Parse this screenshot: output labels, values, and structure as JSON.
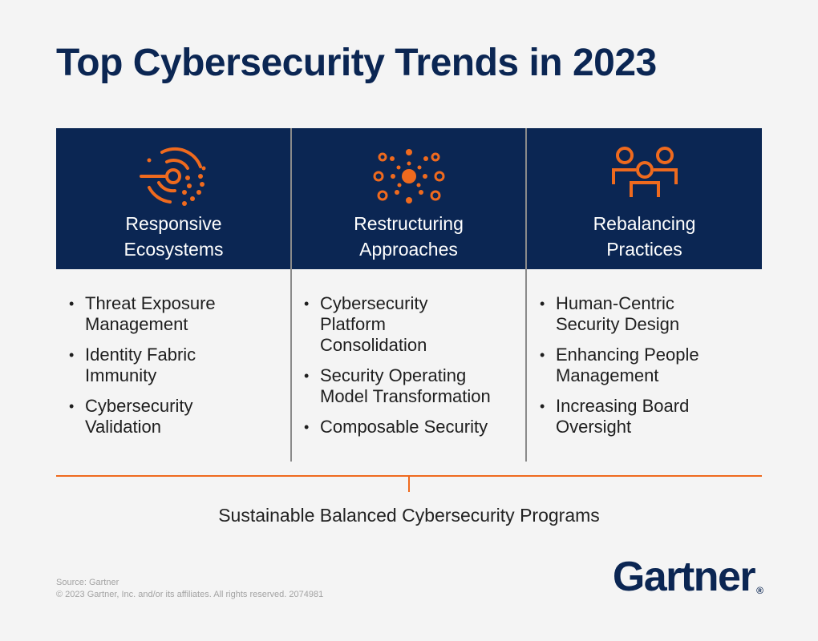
{
  "title": "Top Cybersecurity Trends in 2023",
  "accent_color": "#ef6a1e",
  "navy_color": "#0b2653",
  "columns": [
    {
      "icon": "radar-dots-icon",
      "title_line1": "Responsive",
      "title_line2": "Ecosystems",
      "items": [
        "Threat Exposure Management",
        "Identity Fabric Immunity",
        "Cybersecurity Validation"
      ]
    },
    {
      "icon": "network-cluster-icon",
      "title_line1": "Restructuring",
      "title_line2": "Approaches",
      "items": [
        "Cybersecurity Platform Consolidation",
        "Security Operating Model Transformation",
        "Composable Security"
      ]
    },
    {
      "icon": "people-group-icon",
      "title_line1": "Rebalancing",
      "title_line2": "Practices",
      "items": [
        "Human-Centric Security Design",
        "Enhancing People Management",
        "Increasing Board Oversight"
      ]
    }
  ],
  "foundation": "Sustainable Balanced Cybersecurity Programs",
  "source_line1": "Source: Gartner",
  "source_line2": "© 2023 Gartner, Inc. and/or its affiliates. All rights reserved. 2074981",
  "logo_text": "Gartner",
  "logo_mark": "®"
}
